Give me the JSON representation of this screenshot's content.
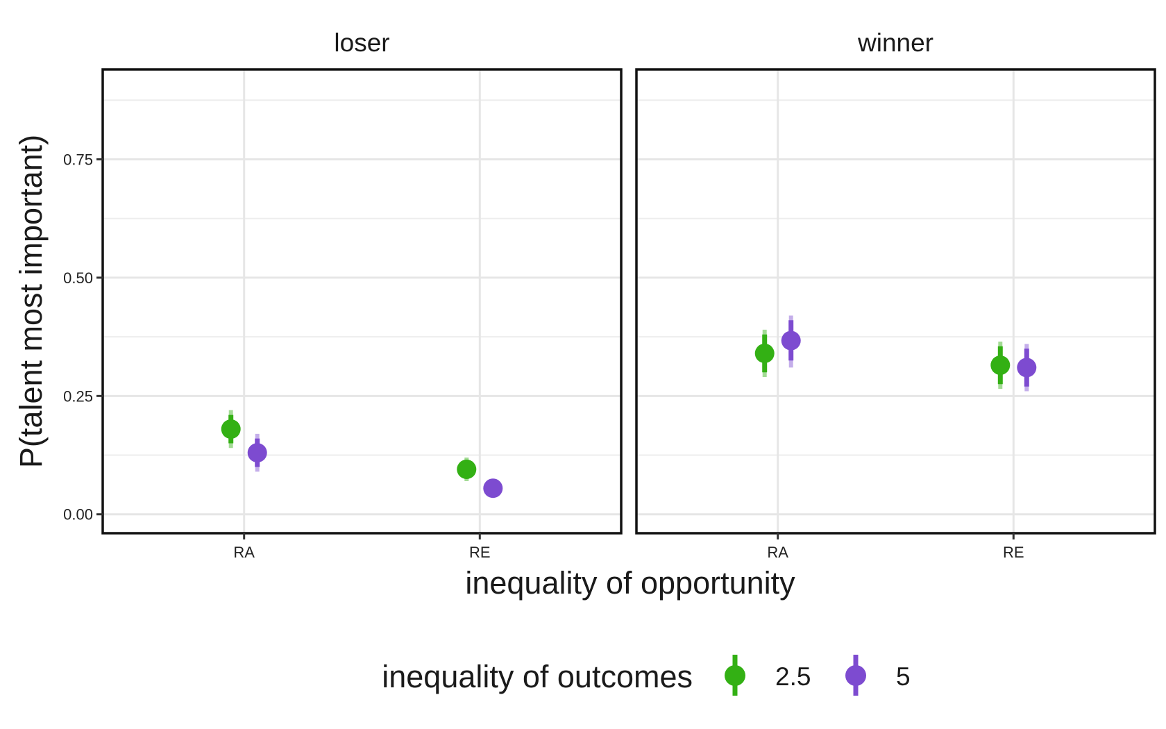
{
  "chart_data": {
    "type": "scatter",
    "facets": [
      "loser",
      "winner"
    ],
    "categories": [
      "RA",
      "RE"
    ],
    "xlabel": "inequality of opportunity",
    "ylabel": "P(talent most important)",
    "ylim": [
      -0.04,
      0.94
    ],
    "yticks": [
      0.0,
      0.25,
      0.5,
      0.75
    ],
    "ytick_labels": [
      "0.00",
      "0.25",
      "0.50",
      "0.75"
    ],
    "grid": true,
    "legend": {
      "title": "inequality of outcomes",
      "position": "bottom",
      "entries": [
        "2.5",
        "5"
      ]
    },
    "series": [
      {
        "name": "2.5",
        "color": "#33b014",
        "points": [
          {
            "facet": "loser",
            "x": "RA",
            "y": 0.18,
            "inner": [
              0.15,
              0.21
            ],
            "outer": [
              0.14,
              0.22
            ]
          },
          {
            "facet": "loser",
            "x": "RE",
            "y": 0.095,
            "inner": [
              0.075,
              0.115
            ],
            "outer": [
              0.07,
              0.12
            ]
          },
          {
            "facet": "winner",
            "x": "RA",
            "y": 0.34,
            "inner": [
              0.3,
              0.38
            ],
            "outer": [
              0.29,
              0.39
            ]
          },
          {
            "facet": "winner",
            "x": "RE",
            "y": 0.315,
            "inner": [
              0.275,
              0.355
            ],
            "outer": [
              0.265,
              0.365
            ]
          }
        ]
      },
      {
        "name": "5",
        "color": "#7d4bd0",
        "points": [
          {
            "facet": "loser",
            "x": "RA",
            "y": 0.13,
            "inner": [
              0.1,
              0.16
            ],
            "outer": [
              0.09,
              0.17
            ]
          },
          {
            "facet": "loser",
            "x": "RE",
            "y": 0.055,
            "inner": [
              0.045,
              0.065
            ],
            "outer": [
              0.04,
              0.07
            ]
          },
          {
            "facet": "winner",
            "x": "RA",
            "y": 0.367,
            "inner": [
              0.325,
              0.41
            ],
            "outer": [
              0.31,
              0.42
            ]
          },
          {
            "facet": "winner",
            "x": "RE",
            "y": 0.31,
            "inner": [
              0.27,
              0.35
            ],
            "outer": [
              0.26,
              0.36
            ]
          }
        ]
      }
    ]
  }
}
